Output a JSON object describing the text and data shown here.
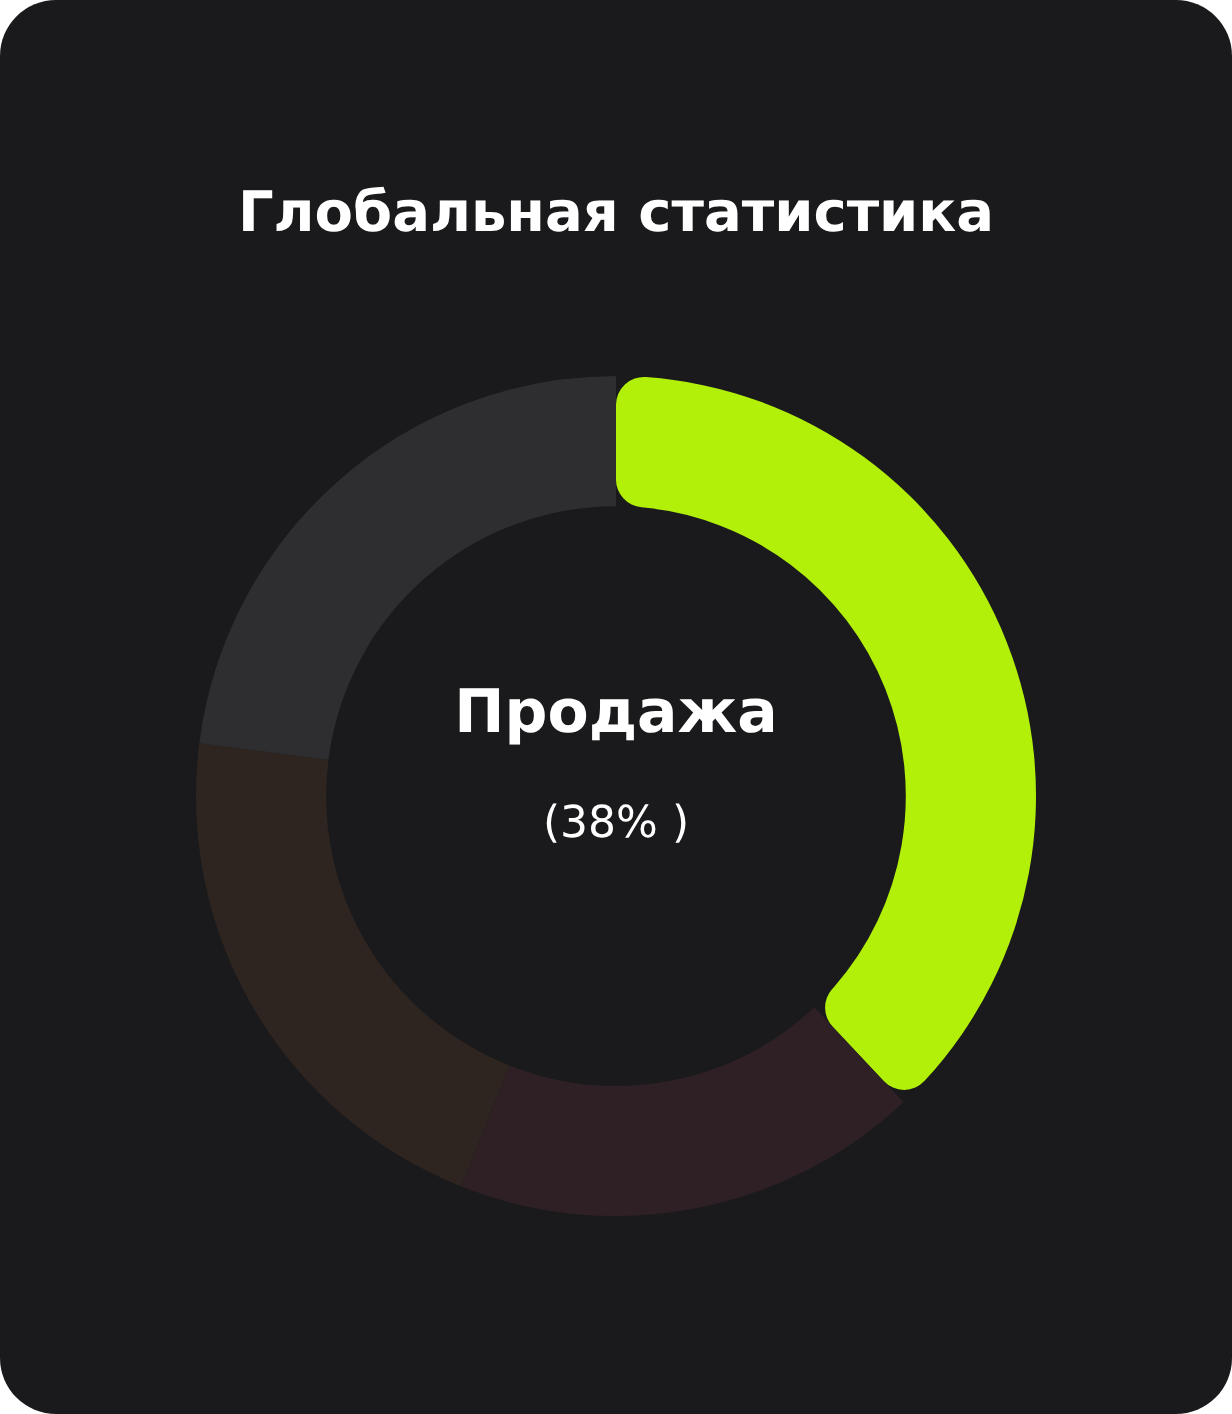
{
  "chart_data": {
    "type": "donut",
    "title": "Глобальная статистика",
    "categories": [
      null,
      null,
      null,
      null
    ],
    "values": [
      38,
      18,
      21,
      23
    ],
    "annotations": [
      "Продажа",
      "(38% )"
    ],
    "colors": [
      "#b2f00a",
      "#2f2026",
      "#2e2520",
      "#2e2e30"
    ],
    "legend": false
  }
}
